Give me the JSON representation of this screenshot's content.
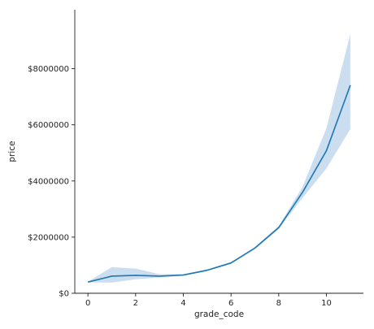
{
  "chart_data": {
    "type": "line",
    "title": "",
    "xlabel": "grade_code",
    "ylabel": "price",
    "xlim": [
      -0.55,
      11.55
    ],
    "ylim": [
      0,
      10100000
    ],
    "xticks": [
      0,
      2,
      4,
      6,
      8,
      10
    ],
    "xtick_labels": [
      "0",
      "2",
      "4",
      "6",
      "8",
      "10"
    ],
    "yticks": [
      0,
      2000000,
      4000000,
      6000000,
      8000000
    ],
    "ytick_labels": [
      "$0",
      "$2000000",
      "$4000000",
      "$6000000",
      "$8000000"
    ],
    "grid": false,
    "legend": null,
    "colors": {
      "line": "#1f77b4",
      "band": "#a6c8e6",
      "axis": "#222222"
    },
    "series": [
      {
        "x": [
          0,
          1,
          2,
          3,
          4,
          5,
          6,
          7,
          8,
          9,
          10,
          11
        ],
        "y": [
          400000,
          610000,
          640000,
          610000,
          650000,
          820000,
          1080000,
          1610000,
          2340000,
          3600000,
          5080000,
          7410000
        ],
        "ci_low": [
          390000,
          380000,
          500000,
          560000,
          630000,
          790000,
          1050000,
          1570000,
          2290000,
          3400000,
          4450000,
          5850000
        ],
        "ci_high": [
          410000,
          930000,
          880000,
          680000,
          680000,
          850000,
          1110000,
          1650000,
          2400000,
          3800000,
          5880000,
          9240000
        ]
      }
    ]
  }
}
